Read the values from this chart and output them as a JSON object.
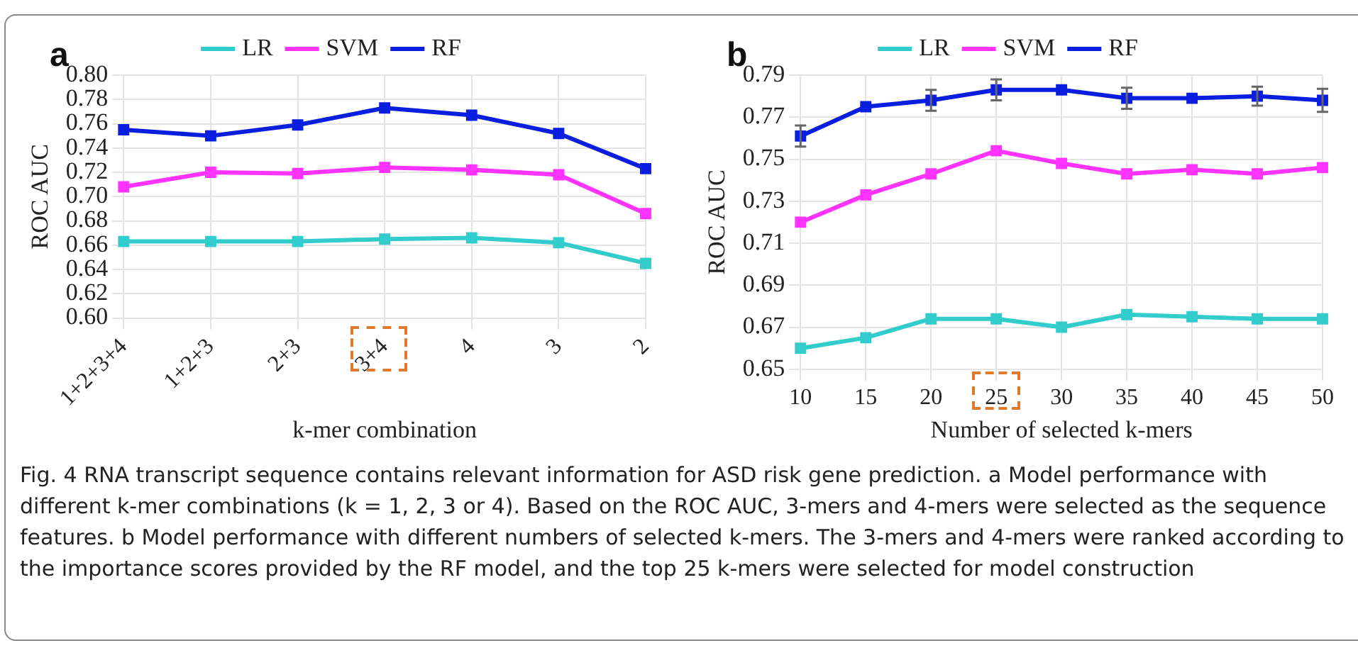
{
  "chart_data": [
    {
      "type": "line",
      "xlabel": "k-mer combination",
      "ylabel": "ROC AUC",
      "categories": [
        "1+2+3+4",
        "1+2+3",
        "2+3",
        "3+4",
        "4",
        "3",
        "2"
      ],
      "series": [
        {
          "name": "LR",
          "color": "#33cccc",
          "values": [
            0.663,
            0.663,
            0.663,
            0.665,
            0.666,
            0.662,
            0.645
          ]
        },
        {
          "name": "SVM",
          "color": "#ff33ff",
          "values": [
            0.708,
            0.72,
            0.719,
            0.724,
            0.722,
            0.718,
            0.686
          ]
        },
        {
          "name": "RF",
          "color": "#0a1ee0",
          "values": [
            0.755,
            0.75,
            0.759,
            0.773,
            0.767,
            0.752,
            0.723
          ]
        }
      ],
      "ylim": [
        0.6,
        0.8
      ],
      "yticks": [
        {
          "value": 0.6,
          "label": "0.60"
        },
        {
          "value": 0.62,
          "label": "0.62"
        },
        {
          "value": 0.64,
          "label": "0.64"
        },
        {
          "value": 0.66,
          "label": "0.66"
        },
        {
          "value": 0.68,
          "label": "0.68"
        },
        {
          "value": 0.7,
          "label": "0.70"
        },
        {
          "value": 0.72,
          "label": "0.72"
        },
        {
          "value": 0.74,
          "label": "0.74"
        },
        {
          "value": 0.76,
          "label": "0.76"
        },
        {
          "value": 0.78,
          "label": "0.78"
        },
        {
          "value": 0.8,
          "label": "0.80"
        }
      ],
      "grid": true,
      "legend": "top",
      "marker": "square",
      "annotations": [
        "a",
        "Fig. 4  RNA transcript sequence contains relevant information for ASD risk gene prediction. a Model performance with different k-mer combinations (k = 1, 2, 3 or 4). Based on the ROC AUC, 3-mers and 4-mers were selected as the sequence features. b Model performance with different numbers of selected k-mers. The 3-mers and 4-mers were ranked according to the importance scores provided by the RF model, and the top 25 k-mers were selected for model construction"
      ]
    },
    {
      "type": "line",
      "xlabel": "Number of selected k-mers",
      "ylabel": "ROC AUC",
      "categories": [
        "10",
        "15",
        "20",
        "25",
        "30",
        "35",
        "40",
        "45",
        "50"
      ],
      "series": [
        {
          "name": "LR",
          "color": "#33cccc",
          "values": [
            0.66,
            0.665,
            0.674,
            0.674,
            0.67,
            0.676,
            0.675,
            0.674,
            0.674
          ]
        },
        {
          "name": "SVM",
          "color": "#ff33ff",
          "values": [
            0.72,
            0.733,
            0.743,
            0.754,
            0.748,
            0.743,
            0.745,
            0.743,
            0.746
          ]
        },
        {
          "name": "RF",
          "color": "#0a1ee0",
          "values": [
            0.761,
            0.775,
            0.778,
            0.783,
            0.783,
            0.779,
            0.779,
            0.78,
            0.778
          ],
          "errors": [
            0.005,
            null,
            0.005,
            0.005,
            null,
            0.005,
            null,
            0.0045,
            0.0055
          ]
        }
      ],
      "ylim": [
        0.65,
        0.79
      ],
      "yticks": [
        0.65,
        0.67,
        0.69,
        0.71,
        0.73,
        0.75,
        0.77,
        0.79
      ],
      "grid": true,
      "legend": "top",
      "marker": "square",
      "annotations": [
        "b"
      ]
    }
  ]
}
